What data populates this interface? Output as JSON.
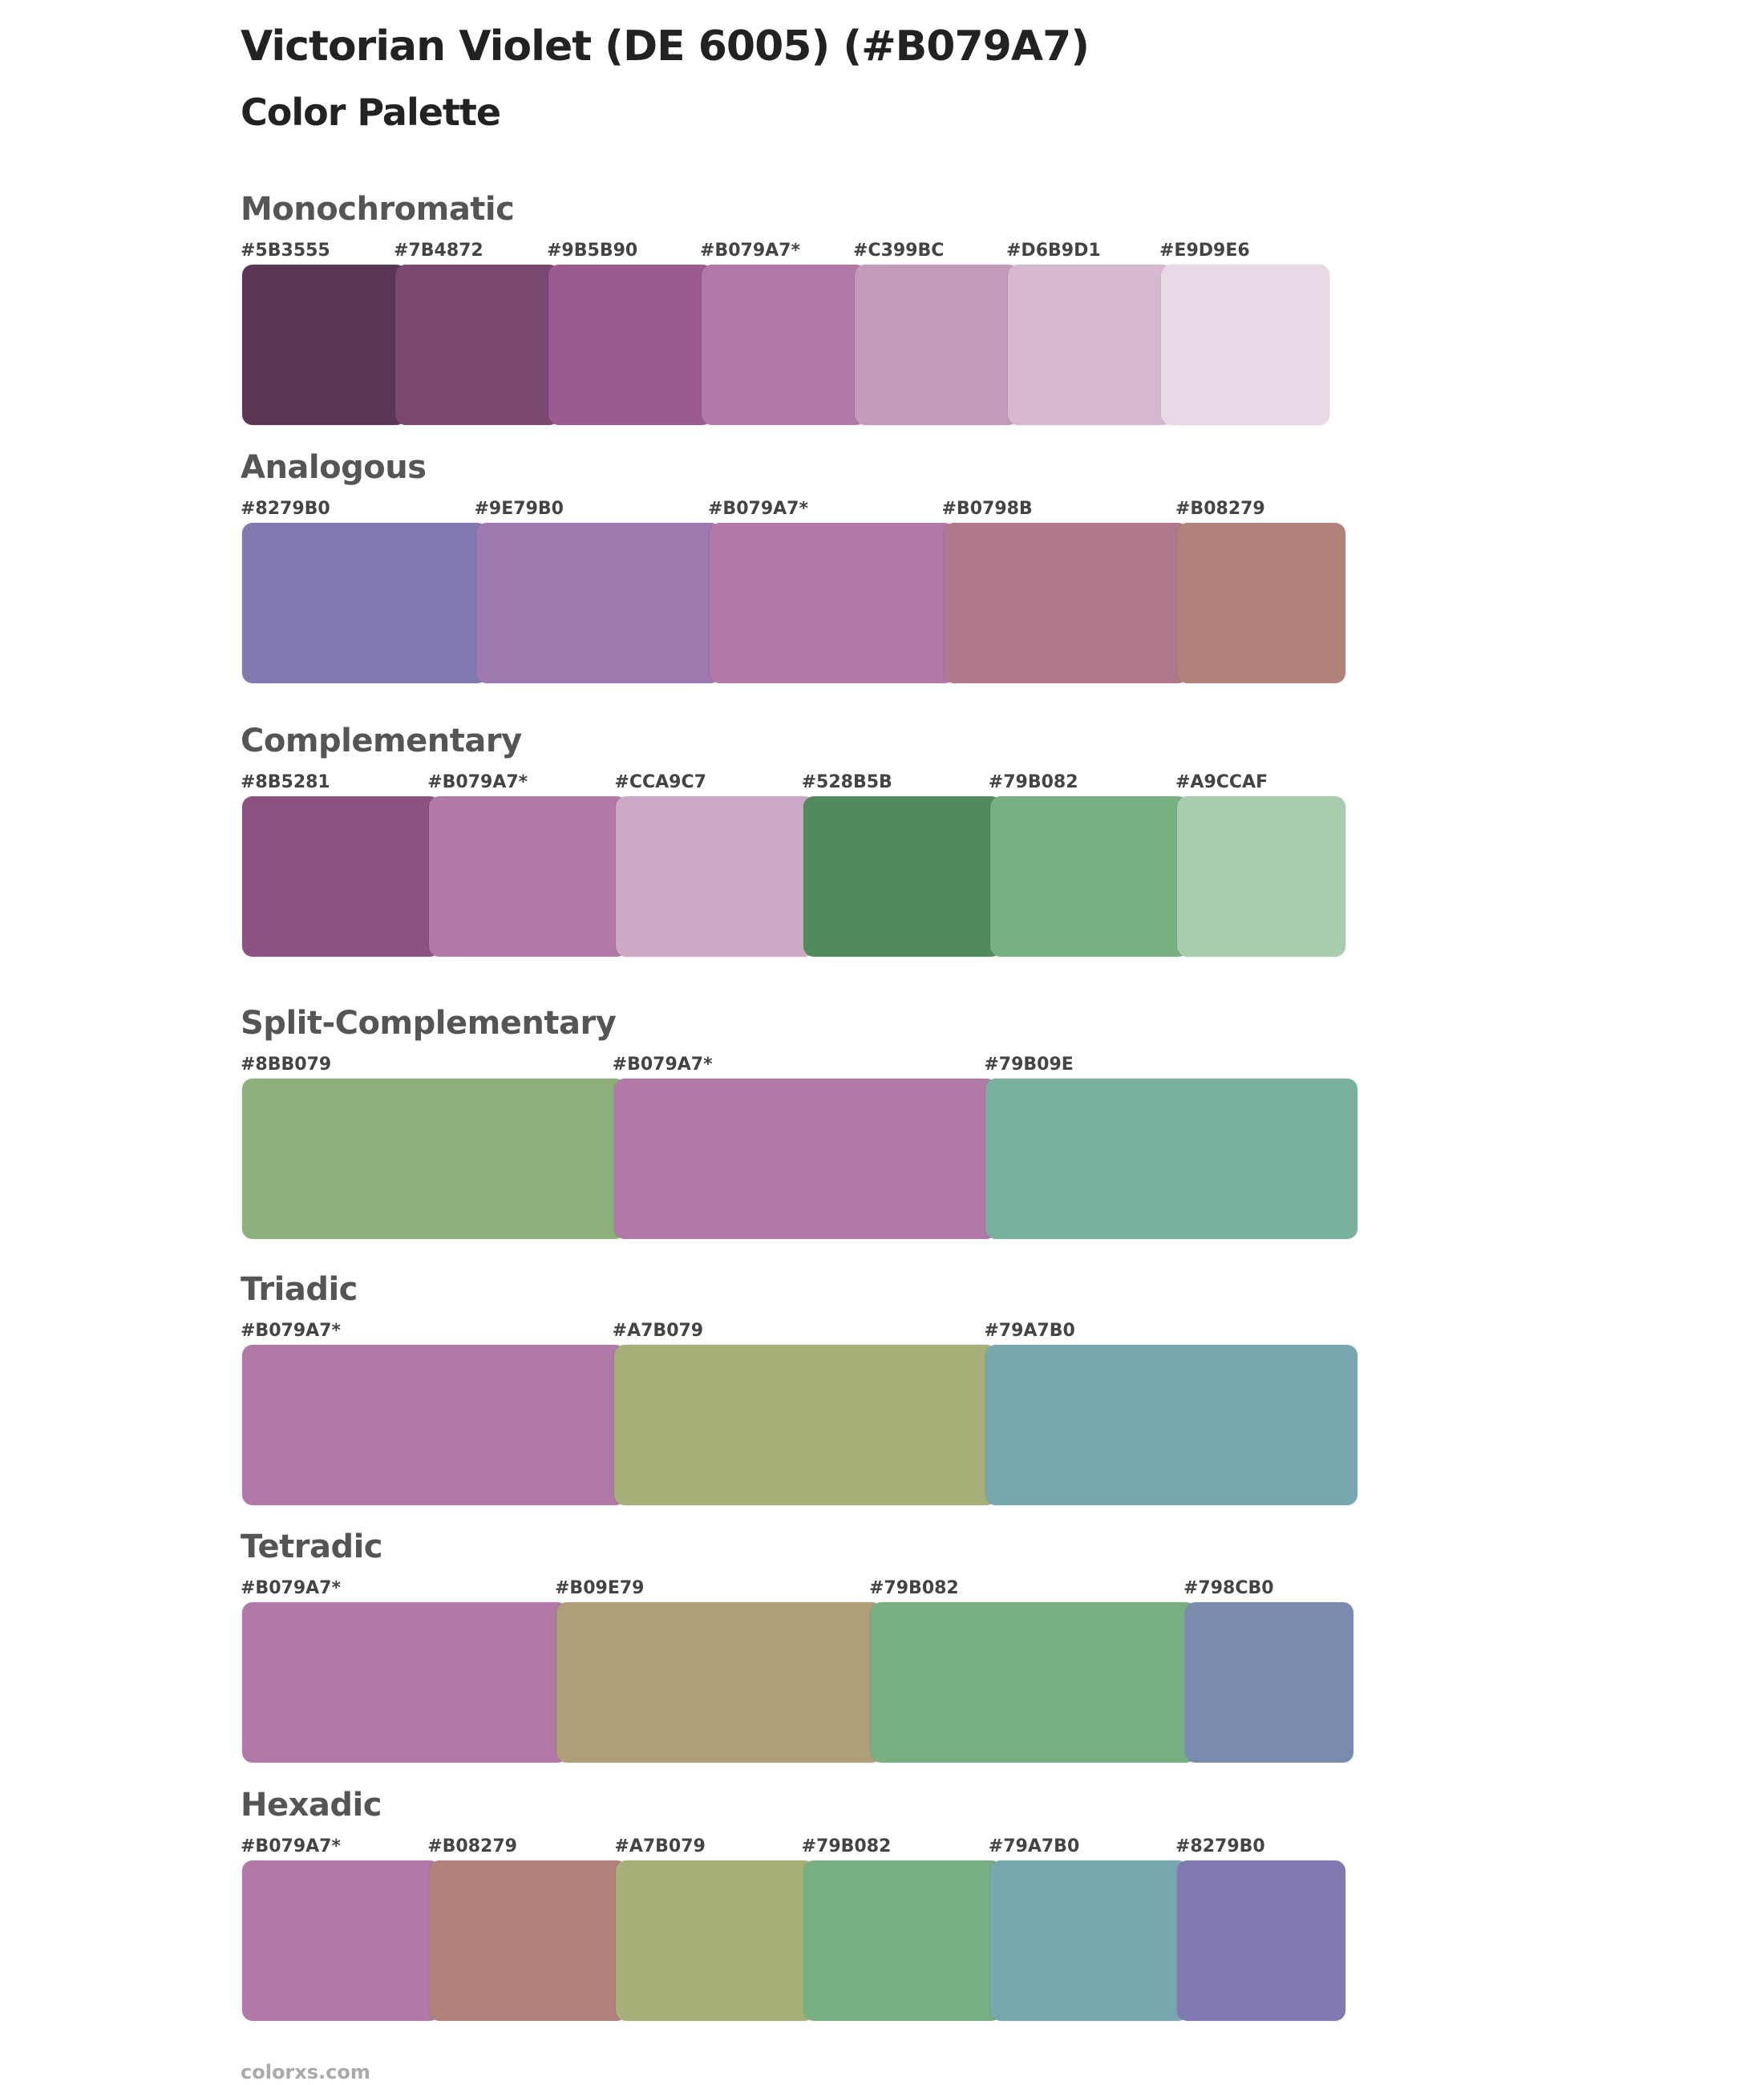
{
  "header": {
    "title": "Victorian Violet (DE 6005) (#B079A7)",
    "subtitle": "Color Palette"
  },
  "sections": [
    {
      "name": "Monochromatic",
      "colors": [
        {
          "label": "#5B3555",
          "hex": "#5B3555"
        },
        {
          "label": "#7B4872",
          "hex": "#7B4872"
        },
        {
          "label": "#9B5B90",
          "hex": "#9B5B90"
        },
        {
          "label": "#B079A7*",
          "hex": "#B079A7"
        },
        {
          "label": "#C399BC",
          "hex": "#C399BC"
        },
        {
          "label": "#D6B9D1",
          "hex": "#D6B9D1"
        },
        {
          "label": "#E9D9E6",
          "hex": "#E9D9E6"
        }
      ]
    },
    {
      "name": "Analogous",
      "colors": [
        {
          "label": "#8279B0",
          "hex": "#8279B0"
        },
        {
          "label": "#9E79B0",
          "hex": "#9E79B0"
        },
        {
          "label": "#B079A7*",
          "hex": "#B079A7"
        },
        {
          "label": "#B0798B",
          "hex": "#B0798B"
        },
        {
          "label": "#B08279",
          "hex": "#B08279"
        }
      ]
    },
    {
      "name": "Complementary",
      "colors": [
        {
          "label": "#8B5281",
          "hex": "#8B5281"
        },
        {
          "label": "#B079A7*",
          "hex": "#B079A7"
        },
        {
          "label": "#CCA9C7",
          "hex": "#CCA9C7"
        },
        {
          "label": "#528B5B",
          "hex": "#528B5B"
        },
        {
          "label": "#79B082",
          "hex": "#79B082"
        },
        {
          "label": "#A9CCAF",
          "hex": "#A9CCAF"
        }
      ]
    },
    {
      "name": "Split-Complementary",
      "colors": [
        {
          "label": "#8BB079",
          "hex": "#8BB079"
        },
        {
          "label": "#B079A7*",
          "hex": "#B079A7"
        },
        {
          "label": "#79B09E",
          "hex": "#79B09E"
        }
      ]
    },
    {
      "name": "Triadic",
      "colors": [
        {
          "label": "#B079A7*",
          "hex": "#B079A7"
        },
        {
          "label": "#A7B079",
          "hex": "#A7B079"
        },
        {
          "label": "#79A7B0",
          "hex": "#79A7B0"
        }
      ]
    },
    {
      "name": "Tetradic",
      "colors": [
        {
          "label": "#B079A7*",
          "hex": "#B079A7"
        },
        {
          "label": "#B09E79",
          "hex": "#B09E79"
        },
        {
          "label": "#79B082",
          "hex": "#79B082"
        },
        {
          "label": "#798CB0",
          "hex": "#798CB0"
        }
      ]
    },
    {
      "name": "Hexadic",
      "colors": [
        {
          "label": "#B079A7*",
          "hex": "#B079A7"
        },
        {
          "label": "#B08279",
          "hex": "#B08279"
        },
        {
          "label": "#A7B079",
          "hex": "#A7B079"
        },
        {
          "label": "#79B082",
          "hex": "#79B082"
        },
        {
          "label": "#79A7B0",
          "hex": "#79A7B0"
        },
        {
          "label": "#8279B0",
          "hex": "#8279B0"
        }
      ]
    }
  ],
  "footer": {
    "text": "colorxs.com"
  }
}
